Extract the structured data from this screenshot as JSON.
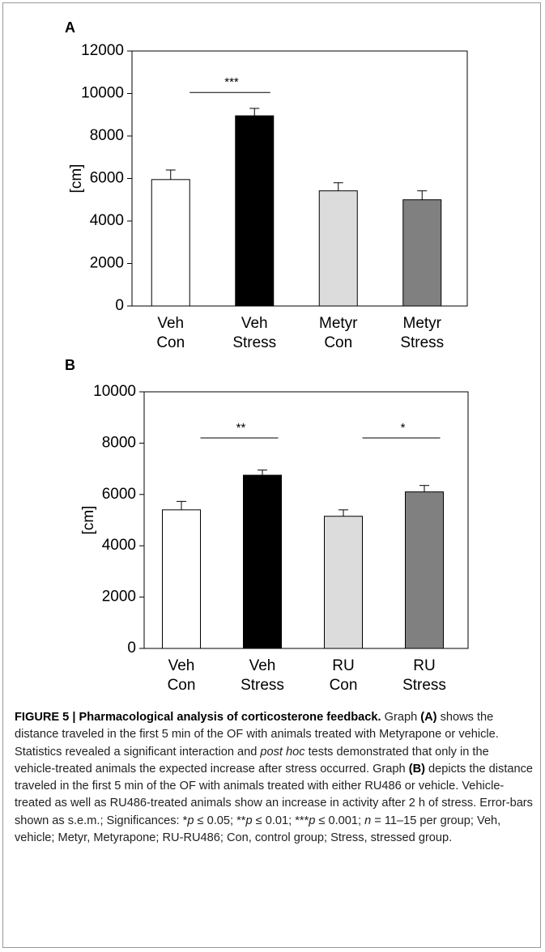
{
  "chart_data": [
    {
      "type": "bar",
      "panel": "A",
      "ylabel": "[cm]",
      "categories": [
        [
          "Veh",
          "Con"
        ],
        [
          "Veh",
          "Stress"
        ],
        [
          "Metyr",
          "Con"
        ],
        [
          "Metyr",
          "Stress"
        ]
      ],
      "values": [
        5950,
        8950,
        5420,
        5000
      ],
      "errors": [
        450,
        350,
        380,
        420
      ],
      "colors": [
        "#ffffff",
        "#000000",
        "#dcdcdc",
        "#808080"
      ],
      "ylim": [
        0,
        12000
      ],
      "yticks": [
        0,
        2000,
        4000,
        6000,
        8000,
        10000,
        12000
      ],
      "annotations": [
        {
          "text": "***",
          "from": 0,
          "to": 1,
          "y": 10050
        }
      ]
    },
    {
      "type": "bar",
      "panel": "B",
      "ylabel": "[cm]",
      "categories": [
        [
          "Veh",
          "Con"
        ],
        [
          "Veh",
          "Stress"
        ],
        [
          "RU",
          "Con"
        ],
        [
          "RU",
          "Stress"
        ]
      ],
      "values": [
        5400,
        6750,
        5150,
        6100
      ],
      "errors": [
        330,
        200,
        250,
        250
      ],
      "colors": [
        "#ffffff",
        "#000000",
        "#dcdcdc",
        "#808080"
      ],
      "ylim": [
        0,
        10000
      ],
      "yticks": [
        0,
        2000,
        4000,
        6000,
        8000,
        10000
      ],
      "annotations": [
        {
          "text": "**",
          "from": 0,
          "to": 1,
          "y": 8200
        },
        {
          "text": "*",
          "from": 2,
          "to": 3,
          "y": 8200
        }
      ]
    }
  ],
  "caption": [
    {
      "text": "FIGURE 5 | Pharmacological analysis of corticosterone feedback.",
      "bold": true
    },
    {
      "text": " Graph "
    },
    {
      "text": "(A)",
      "bold": true
    },
    {
      "text": " shows the distance traveled in the first 5 min of the OF with animals treated with Metyrapone or vehicle. Statistics revealed a significant interaction and "
    },
    {
      "text": "post hoc",
      "italic": true
    },
    {
      "text": " tests demonstrated that only in the vehicle-treated animals the expected increase after stress occurred. Graph "
    },
    {
      "text": "(B)",
      "bold": true
    },
    {
      "text": " depicts the distance traveled in the first 5 min of the OF with animals treated with either RU486 or vehicle. Vehicle-treated as well as RU486-treated animals show an increase in activity after 2 h of stress. Error-bars shown as s.e.m.; Significances: *"
    },
    {
      "text": "p",
      "italic": true
    },
    {
      "text": " ≤ 0.05; **"
    },
    {
      "text": "p",
      "italic": true
    },
    {
      "text": " ≤ 0.01; ***"
    },
    {
      "text": "p",
      "italic": true
    },
    {
      "text": " ≤ 0.001; "
    },
    {
      "text": "n",
      "italic": true
    },
    {
      "text": " = 11–15 per group; Veh, vehicle; Metyr, Metyrapone; RU-RU486; Con, control group; Stress, stressed group."
    }
  ]
}
